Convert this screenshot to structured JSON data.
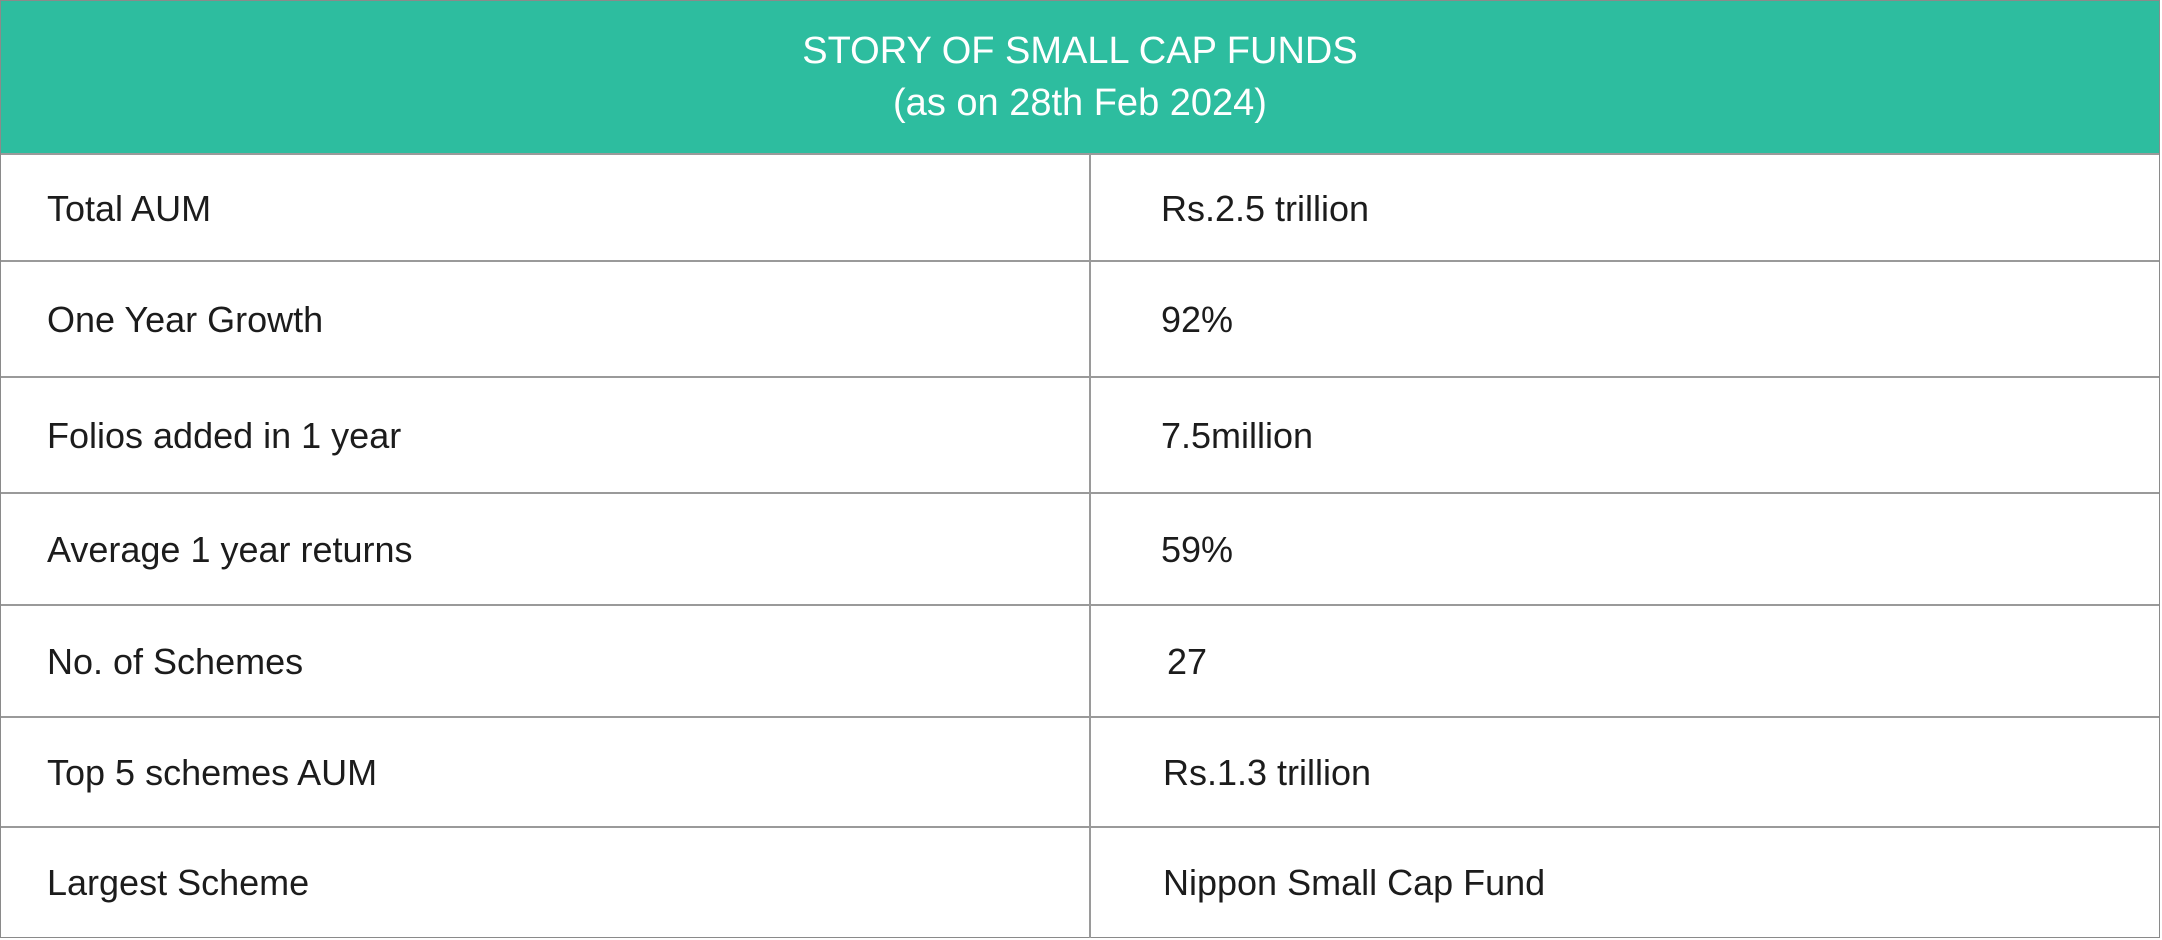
{
  "header": {
    "title": "STORY OF SMALL CAP FUNDS",
    "subtitle": "(as on 28th Feb 2024)"
  },
  "rows": [
    {
      "label": "Total AUM",
      "value": "Rs.2.5 trillion"
    },
    {
      "label": "One Year Growth",
      "value": "92%"
    },
    {
      "label": "Folios added in 1 year",
      "value": "7.5million"
    },
    {
      "label": "Average 1 year returns",
      "value": "59%"
    },
    {
      "label": "No. of Schemes",
      "value": "27"
    },
    {
      "label": "Top 5 schemes AUM",
      "value": "Rs.1.3 trillion"
    },
    {
      "label": "Largest Scheme",
      "value": "Nippon Small Cap Fund"
    }
  ],
  "colors": {
    "header_background": "#2dbd9f",
    "header_text": "#ffffff",
    "border": "#9a9a9a"
  }
}
